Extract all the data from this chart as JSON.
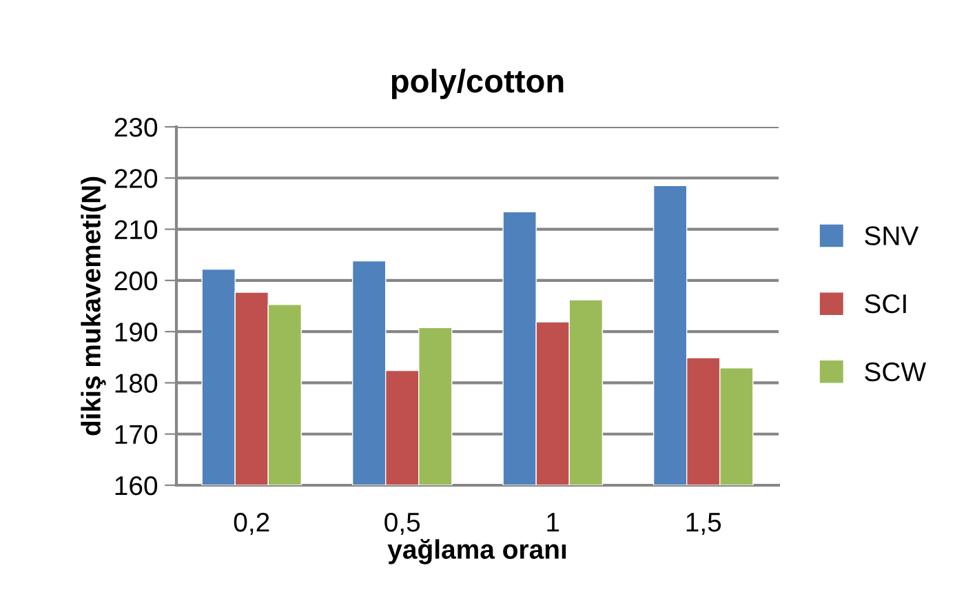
{
  "chart_data": {
    "type": "bar",
    "title": "poly/cotton",
    "xlabel": "yağlama oranı",
    "ylabel": "dikiş mukavemeti(N)",
    "categories": [
      "0,2",
      "0,5",
      "1",
      "1,5"
    ],
    "series": [
      {
        "name": "SNV",
        "color": "#4f81bd",
        "values": [
          202.2,
          203.8,
          213.4,
          218.5
        ]
      },
      {
        "name": "SCI",
        "color": "#c0504d",
        "values": [
          197.7,
          182.4,
          191.9,
          184.9
        ]
      },
      {
        "name": "SCW",
        "color": "#9bbb59",
        "values": [
          195.3,
          190.8,
          196.2,
          182.9
        ]
      }
    ],
    "ylim": [
      160,
      230
    ],
    "yticks": [
      160,
      170,
      180,
      190,
      200,
      210,
      220,
      230
    ],
    "grid": "y",
    "legend": "right"
  }
}
